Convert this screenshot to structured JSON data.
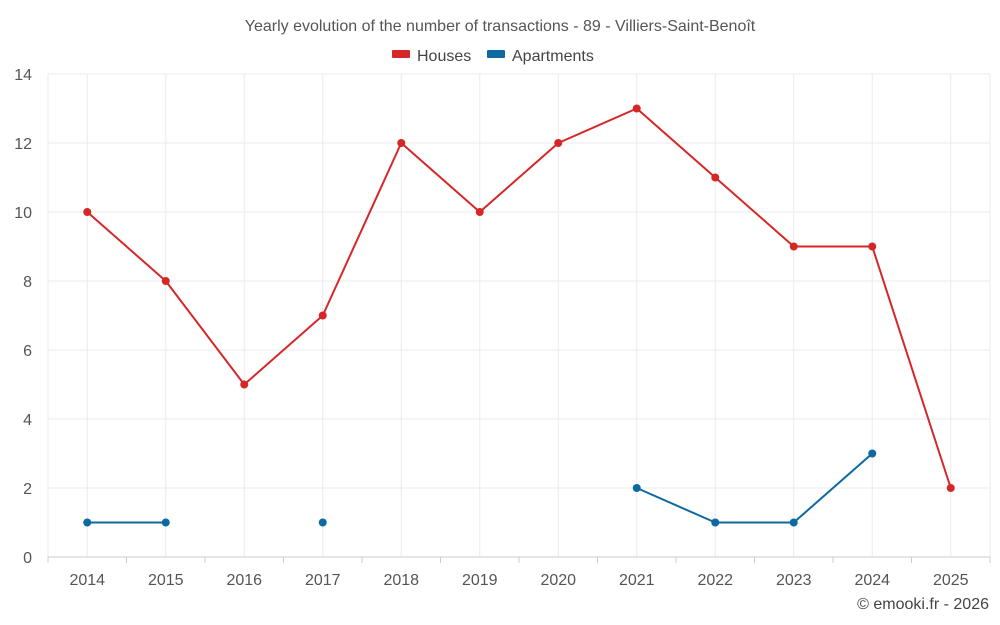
{
  "chart_data": {
    "type": "line",
    "title": "Yearly evolution of the number of transactions - 89 - Villiers-Saint-Benoît",
    "categories": [
      "2014",
      "2015",
      "2016",
      "2017",
      "2018",
      "2019",
      "2020",
      "2021",
      "2022",
      "2023",
      "2024",
      "2025"
    ],
    "series": [
      {
        "name": "Houses",
        "color": "#d62728",
        "values": [
          10,
          8,
          5,
          7,
          12,
          10,
          12,
          13,
          11,
          9,
          9,
          2
        ]
      },
      {
        "name": "Apartments",
        "color": "#0d6aa0",
        "values": [
          1,
          1,
          null,
          1,
          null,
          null,
          null,
          2,
          1,
          1,
          3,
          null
        ]
      }
    ],
    "yticks": [
      0,
      2,
      4,
      6,
      8,
      10,
      12,
      14
    ],
    "ylim": [
      0,
      14
    ],
    "xlabel": "",
    "ylabel": "",
    "grid": true,
    "legend_position": "top-center",
    "credit": "© emooki.fr - 2026"
  }
}
